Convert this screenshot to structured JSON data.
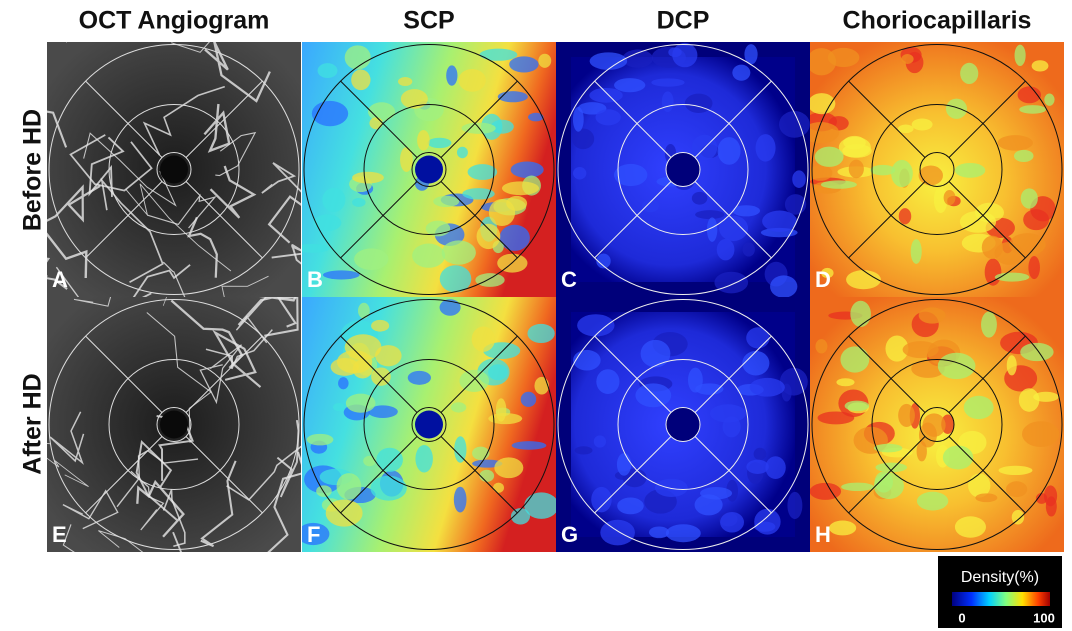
{
  "columns": [
    "OCT Angiogram",
    "SCP",
    "DCP",
    "Choriocapillaris"
  ],
  "rows": [
    "Before HD",
    "After HD"
  ],
  "panels": [
    "A",
    "B",
    "C",
    "D",
    "E",
    "F",
    "G",
    "H"
  ],
  "legend": {
    "title": "Density(%)",
    "min": 0,
    "max": 100
  }
}
